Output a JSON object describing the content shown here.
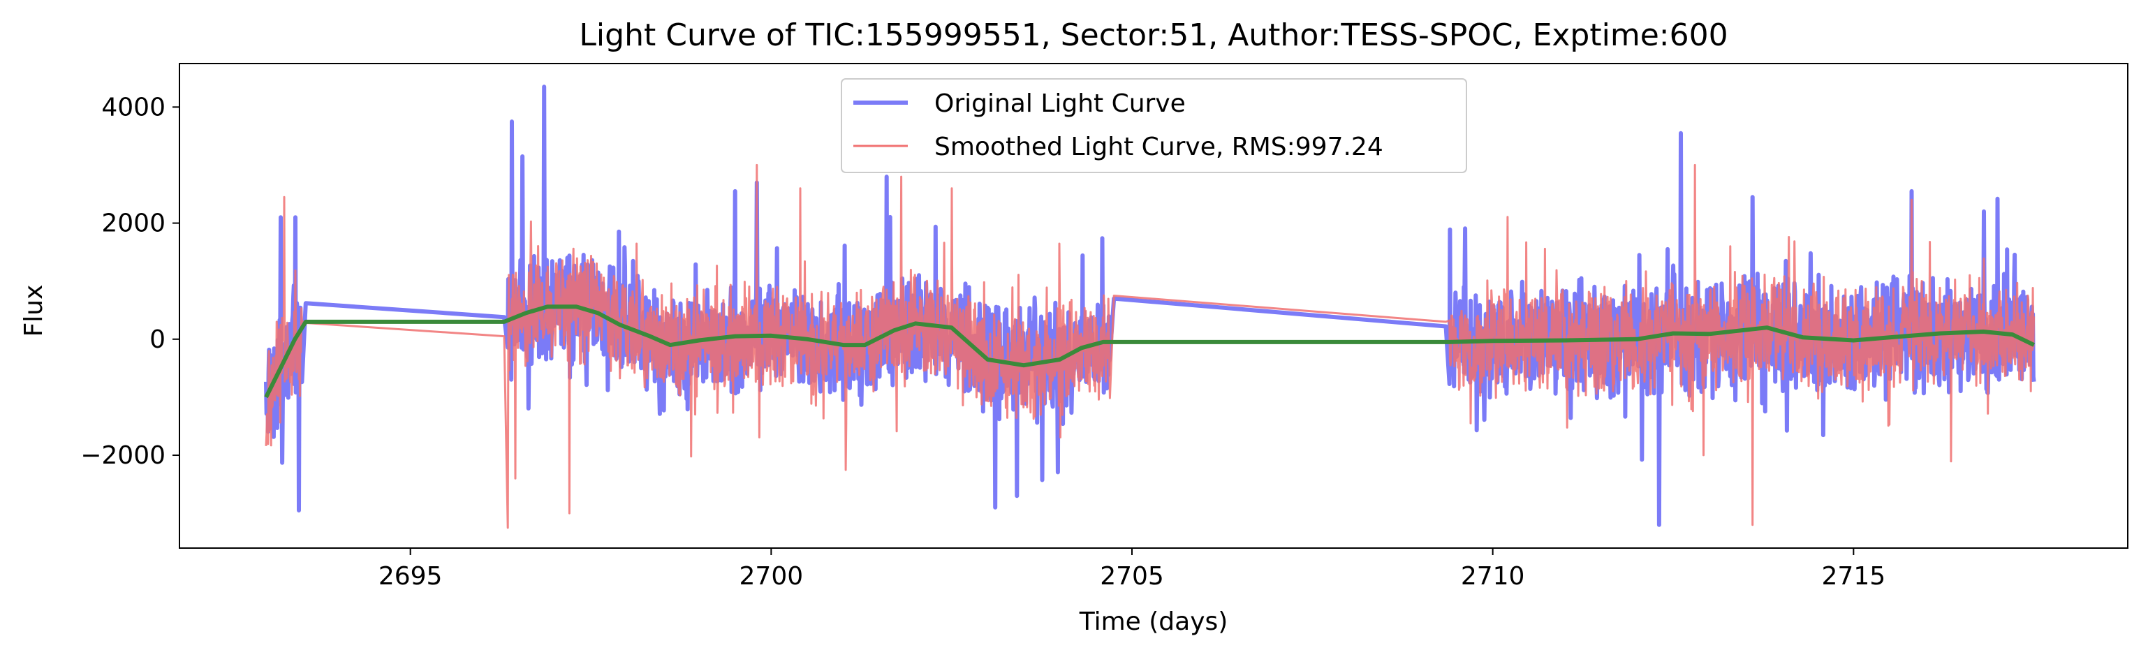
{
  "chart_data": {
    "type": "line",
    "title": "Light Curve of TIC:155999551, Sector:51, Author:TESS-SPOC, Exptime:600",
    "xlabel": "Time (days)",
    "ylabel": "Flux",
    "xlim": [
      2691.8,
      2718.8
    ],
    "ylim": [
      -3600,
      4750
    ],
    "xticks": [
      2695,
      2700,
      2705,
      2710,
      2715
    ],
    "xtick_labels": [
      "2695",
      "2700",
      "2705",
      "2710",
      "2715"
    ],
    "yticks": [
      -2000,
      0,
      2000,
      4000
    ],
    "ytick_labels": [
      "−2000",
      "0",
      "2000",
      "4000"
    ],
    "grid": false,
    "legend_position": "top-center",
    "series": [
      {
        "name": "Original Light Curve",
        "color": "#7b7bf7",
        "style": "noisy",
        "segments": [
          [
            2693.0,
            2693.5
          ],
          [
            2696.35,
            2704.7
          ],
          [
            2709.4,
            2717.5
          ]
        ],
        "gap_points": [
          [
            2693.55,
            620
          ],
          [
            2696.3,
            380
          ],
          [
            2704.75,
            700
          ],
          [
            2709.35,
            220
          ],
          [
            2709.6,
            900
          ]
        ],
        "amplitude": 1100,
        "peak_values": [
          {
            "x": 2693.2,
            "y": 2100
          },
          {
            "x": 2693.4,
            "y": 2100
          },
          {
            "x": 2693.45,
            "y": -2950
          },
          {
            "x": 2696.4,
            "y": 3750
          },
          {
            "x": 2696.85,
            "y": 4350
          },
          {
            "x": 2696.55,
            "y": 3150
          },
          {
            "x": 2699.5,
            "y": 2550
          },
          {
            "x": 2699.8,
            "y": 2700
          },
          {
            "x": 2701.6,
            "y": 2800
          },
          {
            "x": 2703.1,
            "y": -2900
          },
          {
            "x": 2703.4,
            "y": -2700
          },
          {
            "x": 2712.3,
            "y": -3200
          },
          {
            "x": 2712.6,
            "y": 3550
          },
          {
            "x": 2713.6,
            "y": 2450
          },
          {
            "x": 2715.8,
            "y": 2550
          },
          {
            "x": 2716.8,
            "y": 2200
          }
        ]
      },
      {
        "name": "Smoothed Light Curve, RMS:997.24",
        "color": "#f07070",
        "style": "noisy",
        "segments": [
          [
            2693.0,
            2693.5
          ],
          [
            2696.35,
            2704.7
          ],
          [
            2709.4,
            2717.5
          ]
        ],
        "gap_points": [
          [
            2693.55,
            280
          ],
          [
            2696.3,
            50
          ],
          [
            2704.75,
            750
          ],
          [
            2709.35,
            300
          ]
        ],
        "amplitude": 1050,
        "peak_values": [
          {
            "x": 2693.25,
            "y": 2450
          },
          {
            "x": 2693.5,
            "y": -3250
          },
          {
            "x": 2696.45,
            "y": -2400
          },
          {
            "x": 2697.2,
            "y": -3000
          },
          {
            "x": 2699.8,
            "y": 3000
          },
          {
            "x": 2700.4,
            "y": 2600
          },
          {
            "x": 2701.8,
            "y": 2800
          },
          {
            "x": 2702.5,
            "y": 2600
          },
          {
            "x": 2713.6,
            "y": -3200
          },
          {
            "x": 2712.8,
            "y": 3000
          },
          {
            "x": 2715.8,
            "y": 2400
          }
        ]
      },
      {
        "name": "Trend",
        "color": "#3a8a3a",
        "style": "smooth",
        "points": [
          [
            2693.0,
            -1000
          ],
          [
            2693.2,
            -500
          ],
          [
            2693.4,
            0
          ],
          [
            2693.55,
            300
          ],
          [
            2696.3,
            300
          ],
          [
            2696.6,
            450
          ],
          [
            2696.9,
            560
          ],
          [
            2697.3,
            560
          ],
          [
            2697.6,
            450
          ],
          [
            2697.9,
            250
          ],
          [
            2698.3,
            60
          ],
          [
            2698.6,
            -100
          ],
          [
            2699.0,
            -20
          ],
          [
            2699.5,
            50
          ],
          [
            2700.0,
            60
          ],
          [
            2700.5,
            0
          ],
          [
            2701.0,
            -100
          ],
          [
            2701.3,
            -100
          ],
          [
            2701.7,
            150
          ],
          [
            2702.0,
            270
          ],
          [
            2702.5,
            200
          ],
          [
            2703.0,
            -350
          ],
          [
            2703.5,
            -450
          ],
          [
            2704.0,
            -350
          ],
          [
            2704.3,
            -150
          ],
          [
            2704.6,
            -50
          ],
          [
            2709.4,
            -50
          ],
          [
            2710.0,
            -30
          ],
          [
            2711.0,
            -20
          ],
          [
            2712.0,
            0
          ],
          [
            2712.5,
            100
          ],
          [
            2713.0,
            90
          ],
          [
            2713.8,
            200
          ],
          [
            2714.3,
            30
          ],
          [
            2715.0,
            -20
          ],
          [
            2715.5,
            30
          ],
          [
            2716.2,
            100
          ],
          [
            2716.8,
            130
          ],
          [
            2717.2,
            80
          ],
          [
            2717.5,
            -100
          ]
        ]
      }
    ]
  }
}
